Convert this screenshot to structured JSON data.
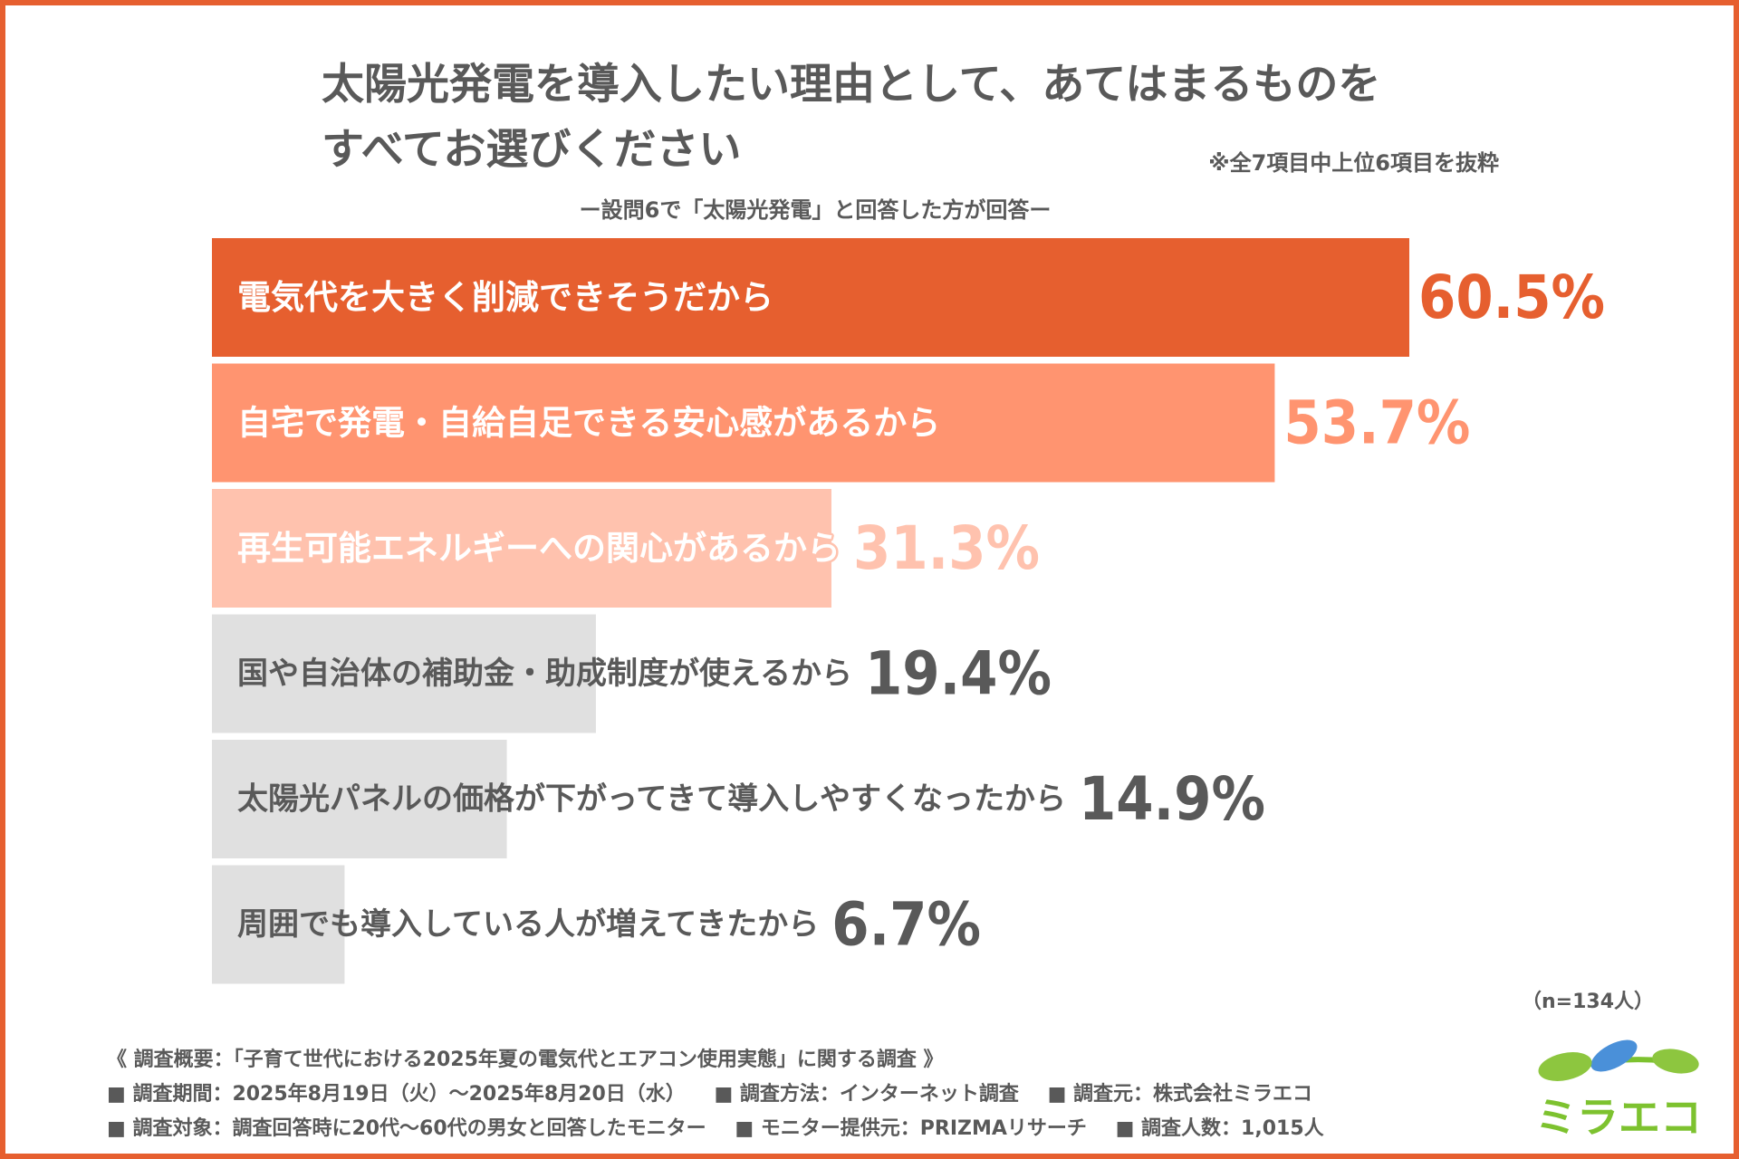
{
  "title_line1": "太陽光発電を導入したい理由として、あてはまるものを",
  "title_line2": "すべてお選びください",
  "note": "※全7項目中上位6項目を抜粋",
  "subtitle": "ー設問6で「太陽光発電」と回答した方が回答ー",
  "n_label": "（n=134人）",
  "footer": {
    "summary": "《 調査概要：「子育て世代における2025年夏の電気代とエアコン使用実態」に関する調査 》",
    "period": "■ 調査期間：2025年8月19日（火）～2025年8月20日（水）",
    "method": "■ 調査方法：インターネット調査",
    "source": "■ 調査元：株式会社ミラエコ",
    "target": "■ 調査対象：調査回答時に20代～60代の男女と回答したモニター",
    "provider": "■ モニター提供元：PRIZMAリサーチ",
    "count": "■ 調査人数：1,015人"
  },
  "logo_text": "ミラエコ",
  "colors": {
    "frame": "#E65F2F",
    "text": "#595959",
    "logo_green": "#7DC22F",
    "logo_blue": "#4A90D9"
  },
  "chart_data": {
    "type": "bar",
    "orientation": "horizontal",
    "unit": "%",
    "categories": [
      "電気代を大きく削減できそうだから",
      "自宅で発電・自給自足できる安心感があるから",
      "再生可能エネルギーへの関心があるから",
      "国や自治体の補助金・助成制度が使えるから",
      "太陽光パネルの価格が下がってきて導入しやすくなったから",
      "周囲でも導入している人が増えてきたから"
    ],
    "values": [
      60.5,
      53.7,
      31.3,
      19.4,
      14.9,
      6.7
    ],
    "value_labels": [
      "60.5%",
      "53.7%",
      "31.3%",
      "19.4%",
      "14.9%",
      "6.7%"
    ],
    "bar_colors": [
      "#E65F2F",
      "#FF9470",
      "#FFC2AE",
      "#E0E0E0",
      "#E0E0E0",
      "#E0E0E0"
    ],
    "value_colors": [
      "#E65F2F",
      "#FF9470",
      "#FFC2AE",
      "#595959",
      "#595959",
      "#595959"
    ],
    "label_colors": [
      "#FFFFFF",
      "#FFFFFF",
      "#FFFFFF",
      "#595959",
      "#595959",
      "#595959"
    ],
    "xlim": [
      0,
      60.5
    ],
    "grid": false,
    "legend": "none"
  }
}
